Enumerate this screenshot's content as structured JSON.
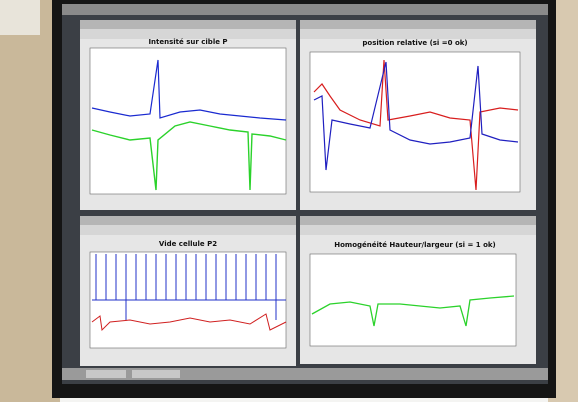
{
  "windows": [
    {
      "title": "Intensité sur cible P"
    },
    {
      "title": "position relative (si =0 ok)"
    },
    {
      "title": "Vide cellule P2"
    },
    {
      "title": "Homogénéité Hauteur/largeur (si = 1 ok)"
    }
  ]
}
